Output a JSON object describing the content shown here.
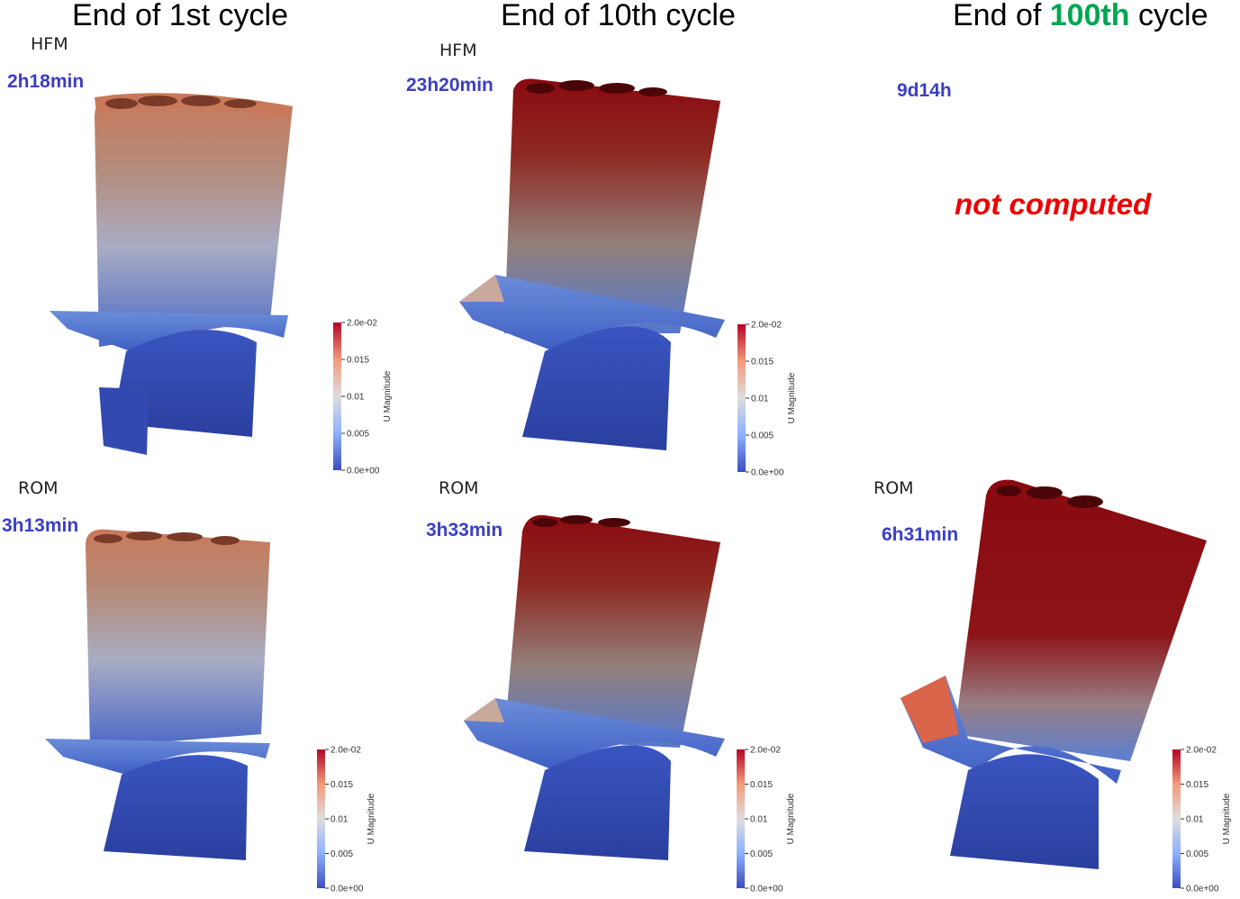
{
  "columns": [
    {
      "prefix": "End of ",
      "highlight": "",
      "ordinal": "1st",
      "suffix": " cycle"
    },
    {
      "prefix": "End of ",
      "highlight": "",
      "ordinal": "10th",
      "suffix": " cycle"
    },
    {
      "prefix": "End of ",
      "highlight": "100th",
      "ordinal": "",
      "suffix": " cycle"
    }
  ],
  "hfm_label": "HFM",
  "rom_label": "ROM",
  "hfm_times": [
    "2h18min",
    "23h20min",
    "9d14h"
  ],
  "rom_times": [
    "3h13min",
    "3h33min",
    "6h31min"
  ],
  "not_computed": "not computed",
  "colorbar": {
    "title": "U Magnitude",
    "ticks": [
      "2.0e-02",
      "0.015",
      "0.01",
      "0.005",
      "0.0e+00"
    ],
    "range": [
      0,
      0.02
    ],
    "colors": {
      "high": "#b40426",
      "mid": "#dddddd",
      "low": "#3b4cc0"
    }
  }
}
